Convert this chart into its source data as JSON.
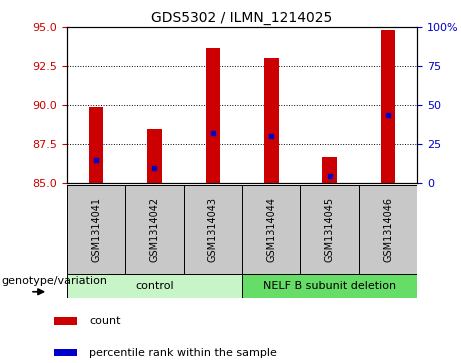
{
  "title": "GDS5302 / ILMN_1214025",
  "samples": [
    "GSM1314041",
    "GSM1314042",
    "GSM1314043",
    "GSM1314044",
    "GSM1314045",
    "GSM1314046"
  ],
  "count_values": [
    89.9,
    88.5,
    93.7,
    93.0,
    86.7,
    94.8
  ],
  "percentile_values": [
    15,
    10,
    32,
    30,
    5,
    44
  ],
  "ymin": 85,
  "ymax": 95,
  "yticks_left": [
    85,
    87.5,
    90,
    92.5,
    95
  ],
  "yticks_right": [
    0,
    25,
    50,
    75,
    100
  ],
  "groups": [
    {
      "label": "control",
      "indices": [
        0,
        1,
        2
      ]
    },
    {
      "label": "NELF B subunit deletion",
      "indices": [
        3,
        4,
        5
      ]
    }
  ],
  "group_colors": [
    "#c8f5c8",
    "#66dd66"
  ],
  "bar_color": "#cc0000",
  "percentile_color": "#0000cc",
  "bar_width": 0.25,
  "left_label_color": "#cc0000",
  "right_label_color": "#0000cc",
  "sample_box_color": "#c8c8c8",
  "plot_bg_color": "#ffffff",
  "title_fontsize": 10,
  "tick_fontsize": 8,
  "sample_fontsize": 7,
  "group_fontsize": 8,
  "legend_fontsize": 8,
  "genotype_fontsize": 8
}
